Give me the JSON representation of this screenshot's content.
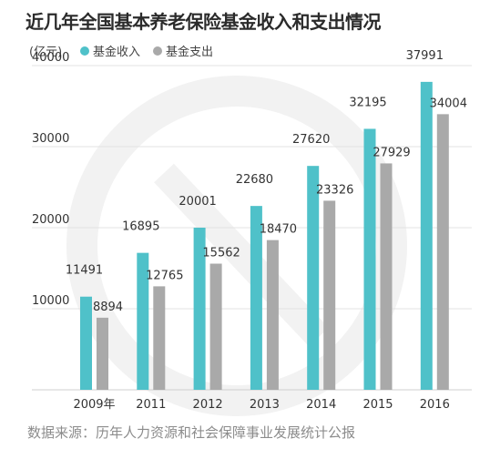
{
  "title": "近几年全国基本养老保险基金收入和支出情况",
  "unit_label": "(亿元)",
  "source": "数据来源：历年人力资源和社会保障事业发展统计公报",
  "legend": [
    {
      "name": "基金收入",
      "color": "#4fc1c9"
    },
    {
      "name": "基金支出",
      "color": "#a9a9a9"
    }
  ],
  "chart_data": {
    "type": "bar",
    "categories": [
      "2009年",
      "2011",
      "2012",
      "2013",
      "2014",
      "2015",
      "2016"
    ],
    "series": [
      {
        "name": "基金收入",
        "values": [
          11491,
          16895,
          20001,
          22680,
          27620,
          32195,
          37991
        ],
        "color": "#4fc1c9"
      },
      {
        "name": "基金支出",
        "values": [
          8894,
          12765,
          15562,
          18470,
          23326,
          27929,
          34004
        ],
        "color": "#a9a9a9"
      }
    ],
    "yticks": [
      10000,
      20000,
      30000,
      40000
    ],
    "ylim": [
      0,
      40000
    ],
    "grid": true,
    "legend_position": "top-left",
    "data_labels": true
  }
}
